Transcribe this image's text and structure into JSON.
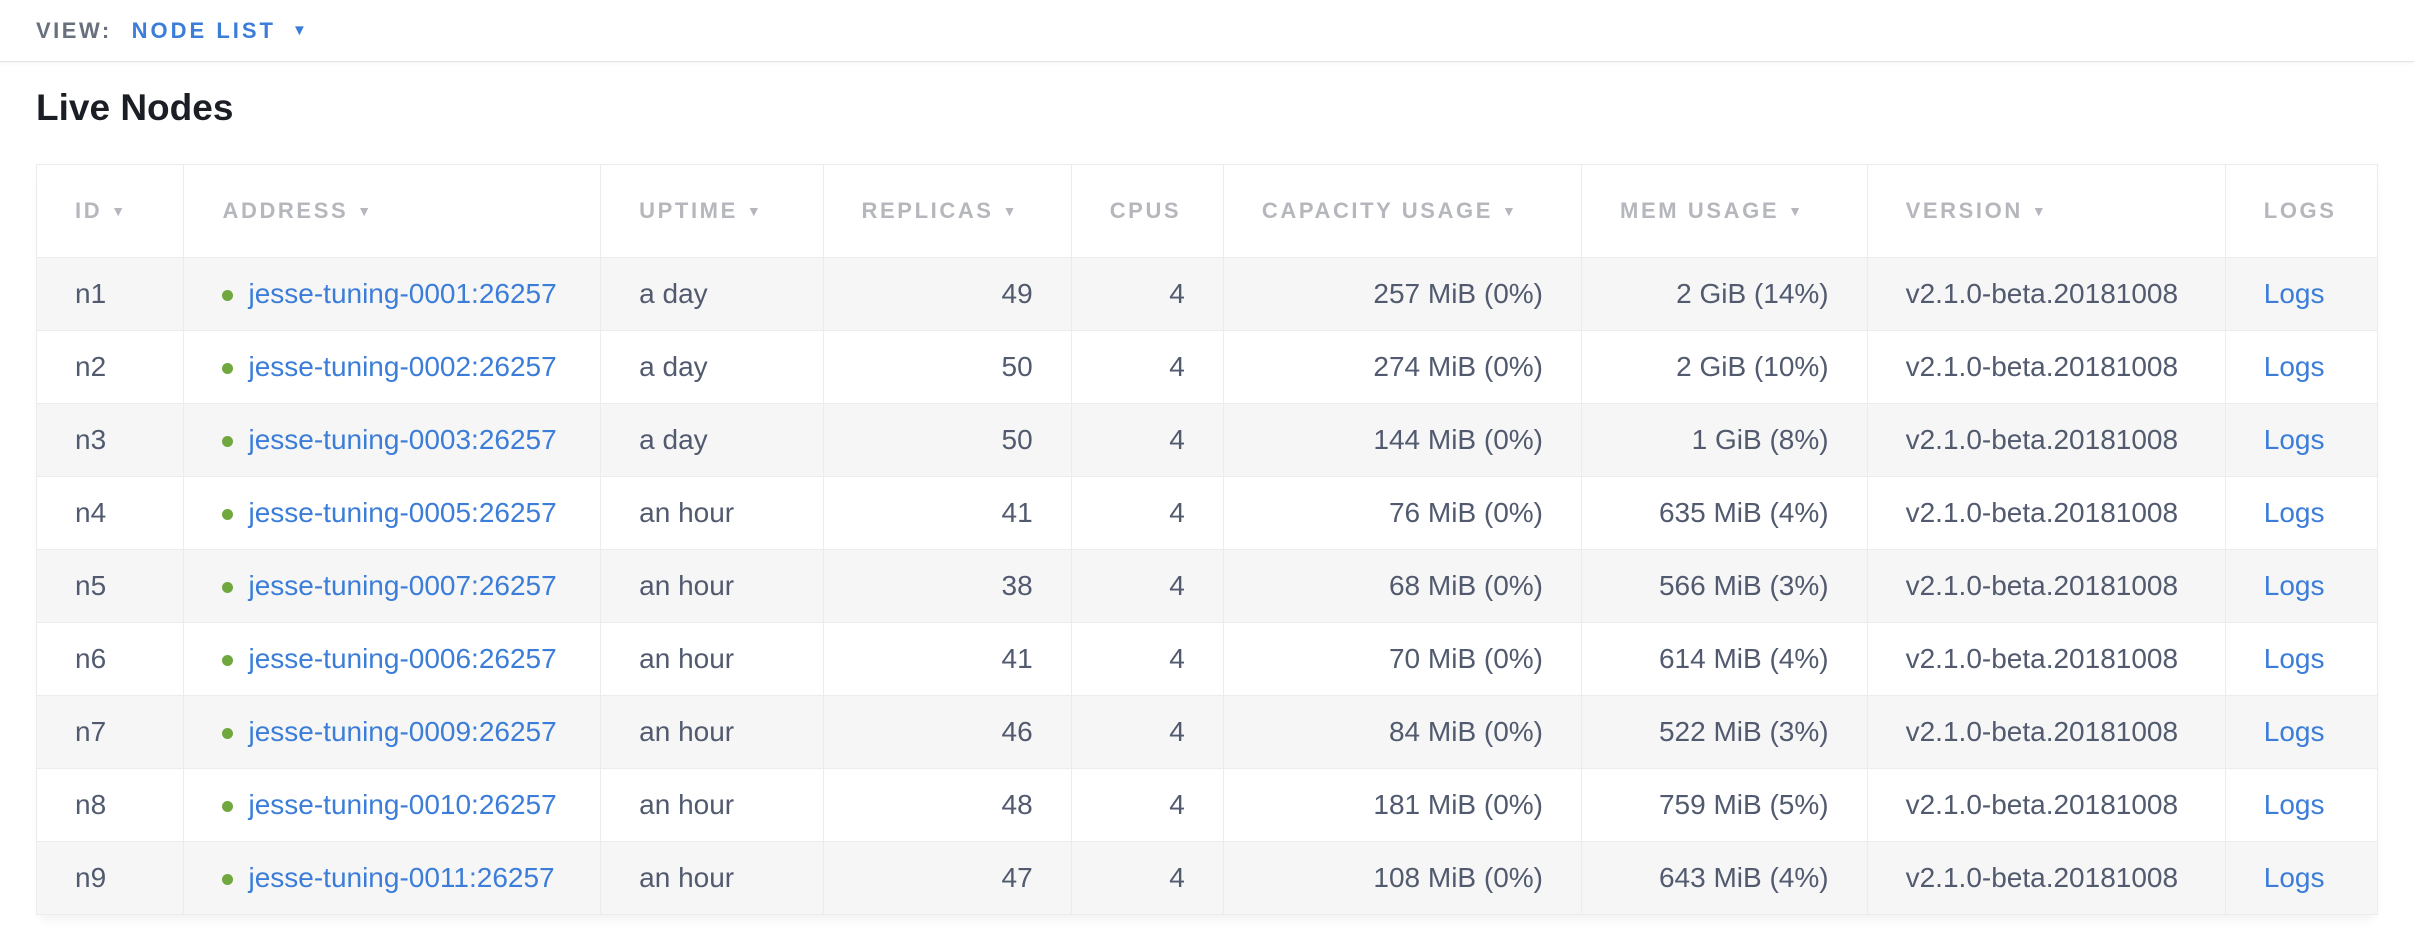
{
  "view_bar": {
    "label": "VIEW:",
    "selected_view": "NODE LIST",
    "dropdown_icon": "caret-down-icon"
  },
  "page_title": "Live Nodes",
  "colors": {
    "link": "#3b7dd8",
    "node_healthy_green": "#70a83f",
    "header_text": "#b5b7bd",
    "body_text": "#515a6e",
    "row_alt_bg": "#f6f6f6",
    "border": "#ececec"
  },
  "table": {
    "columns": [
      {
        "key": "id",
        "label": "ID",
        "sortable": true,
        "align": "left",
        "type": "text"
      },
      {
        "key": "address",
        "label": "ADDRESS",
        "sortable": true,
        "align": "left",
        "type": "link-with-dot"
      },
      {
        "key": "uptime",
        "label": "UPTIME",
        "sortable": true,
        "align": "left",
        "type": "text"
      },
      {
        "key": "replicas",
        "label": "REPLICAS",
        "sortable": true,
        "align": "right",
        "type": "text"
      },
      {
        "key": "cpus",
        "label": "CPUS",
        "sortable": false,
        "align": "right",
        "type": "text"
      },
      {
        "key": "capacity",
        "label": "CAPACITY USAGE",
        "sortable": true,
        "align": "right",
        "type": "text"
      },
      {
        "key": "mem",
        "label": "MEM USAGE",
        "sortable": true,
        "align": "right",
        "type": "text"
      },
      {
        "key": "version",
        "label": "VERSION",
        "sortable": true,
        "align": "left",
        "type": "text"
      },
      {
        "key": "logs",
        "label": "LOGS",
        "sortable": false,
        "align": "left",
        "type": "link"
      }
    ],
    "sort_icon": "▼",
    "rows": [
      {
        "id": "n1",
        "address": "jesse-tuning-0001:26257",
        "uptime": "a day",
        "replicas": "49",
        "cpus": "4",
        "capacity": "257 MiB (0%)",
        "mem": "2 GiB (14%)",
        "version": "v2.1.0-beta.20181008",
        "logs": "Logs"
      },
      {
        "id": "n2",
        "address": "jesse-tuning-0002:26257",
        "uptime": "a day",
        "replicas": "50",
        "cpus": "4",
        "capacity": "274 MiB (0%)",
        "mem": "2 GiB (10%)",
        "version": "v2.1.0-beta.20181008",
        "logs": "Logs"
      },
      {
        "id": "n3",
        "address": "jesse-tuning-0003:26257",
        "uptime": "a day",
        "replicas": "50",
        "cpus": "4",
        "capacity": "144 MiB (0%)",
        "mem": "1 GiB (8%)",
        "version": "v2.1.0-beta.20181008",
        "logs": "Logs"
      },
      {
        "id": "n4",
        "address": "jesse-tuning-0005:26257",
        "uptime": "an hour",
        "replicas": "41",
        "cpus": "4",
        "capacity": "76 MiB (0%)",
        "mem": "635 MiB (4%)",
        "version": "v2.1.0-beta.20181008",
        "logs": "Logs"
      },
      {
        "id": "n5",
        "address": "jesse-tuning-0007:26257",
        "uptime": "an hour",
        "replicas": "38",
        "cpus": "4",
        "capacity": "68 MiB (0%)",
        "mem": "566 MiB (3%)",
        "version": "v2.1.0-beta.20181008",
        "logs": "Logs"
      },
      {
        "id": "n6",
        "address": "jesse-tuning-0006:26257",
        "uptime": "an hour",
        "replicas": "41",
        "cpus": "4",
        "capacity": "70 MiB (0%)",
        "mem": "614 MiB (4%)",
        "version": "v2.1.0-beta.20181008",
        "logs": "Logs"
      },
      {
        "id": "n7",
        "address": "jesse-tuning-0009:26257",
        "uptime": "an hour",
        "replicas": "46",
        "cpus": "4",
        "capacity": "84 MiB (0%)",
        "mem": "522 MiB (3%)",
        "version": "v2.1.0-beta.20181008",
        "logs": "Logs"
      },
      {
        "id": "n8",
        "address": "jesse-tuning-0010:26257",
        "uptime": "an hour",
        "replicas": "48",
        "cpus": "4",
        "capacity": "181 MiB (0%)",
        "mem": "759 MiB (5%)",
        "version": "v2.1.0-beta.20181008",
        "logs": "Logs"
      },
      {
        "id": "n9",
        "address": "jesse-tuning-0011:26257",
        "uptime": "an hour",
        "replicas": "47",
        "cpus": "4",
        "capacity": "108 MiB (0%)",
        "mem": "643 MiB (4%)",
        "version": "v2.1.0-beta.20181008",
        "logs": "Logs"
      }
    ]
  }
}
